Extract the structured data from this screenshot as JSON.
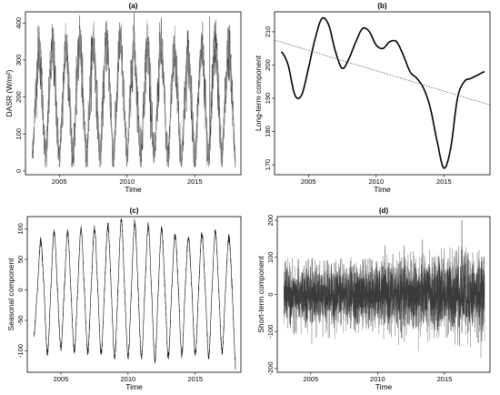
{
  "chart_data": [
    {
      "type": "line",
      "title": "(a)",
      "xlabel": "Time",
      "ylabel": "DASR (W/m²)",
      "xlim": [
        2002.5,
        2018.4
      ],
      "ylim": [
        -10,
        430
      ],
      "xticks": [
        2005,
        2010,
        2015
      ],
      "yticks": [
        0,
        100,
        200,
        300,
        400
      ],
      "line_color": "#3a3a3a",
      "style": "dense daily series",
      "series": [
        {
          "x": [
            2003.0,
            2003.25,
            2003.5,
            2003.75,
            2004.0,
            2004.25,
            2004.5,
            2004.75,
            2005.0,
            2005.25,
            2005.5,
            2005.75,
            2006.0,
            2006.25,
            2006.5,
            2006.75,
            2007.0,
            2007.25,
            2007.5,
            2007.75,
            2008.0,
            2008.25,
            2008.5,
            2008.75,
            2009.0,
            2009.25,
            2009.5,
            2009.75,
            2010.0,
            2010.25,
            2010.5,
            2010.75,
            2011.0,
            2011.25,
            2011.5,
            2011.75,
            2012.0,
            2012.25,
            2012.5,
            2012.75,
            2013.0,
            2013.25,
            2013.5,
            2013.75,
            2014.0,
            2014.25,
            2014.5,
            2014.75,
            2015.0,
            2015.25,
            2015.5,
            2015.75,
            2016.0,
            2016.25,
            2016.5,
            2016.75,
            2017.0,
            2017.25,
            2017.5,
            2017.75,
            2018.0
          ],
          "values": [
            40,
            200,
            330,
            200,
            45,
            205,
            330,
            195,
            40,
            200,
            340,
            200,
            45,
            205,
            350,
            200,
            45,
            200,
            345,
            205,
            45,
            210,
            350,
            200,
            40,
            205,
            350,
            200,
            45,
            200,
            345,
            200,
            40,
            200,
            340,
            200,
            35,
            195,
            335,
            195,
            35,
            190,
            320,
            190,
            30,
            185,
            315,
            190,
            30,
            190,
            330,
            195,
            35,
            200,
            345,
            200,
            35,
            200,
            335,
            195,
            20
          ]
        }
      ],
      "spike": {
        "x": 2016.1,
        "value": 418
      }
    },
    {
      "type": "line",
      "title": "(b)",
      "xlabel": "Time",
      "ylabel": "Long-term component",
      "xlim": [
        2002.5,
        2018.4
      ],
      "ylim": [
        167,
        216
      ],
      "xticks": [
        2005,
        2010,
        2015
      ],
      "yticks": [
        170,
        180,
        190,
        200,
        210
      ],
      "series": [
        {
          "name": "",
          "x": [
            2003.0,
            2003.5,
            2004.0,
            2004.5,
            2005.0,
            2005.5,
            2006.0,
            2006.5,
            2007.0,
            2007.5,
            2008.0,
            2008.5,
            2009.0,
            2009.5,
            2010.0,
            2010.5,
            2011.0,
            2011.5,
            2012.0,
            2012.5,
            2013.0,
            2013.5,
            2014.0,
            2014.5,
            2015.0,
            2015.5,
            2016.0,
            2016.5,
            2017.0,
            2017.5,
            2018.0
          ],
          "values": [
            204,
            200,
            191,
            191,
            199,
            208,
            214,
            212,
            204,
            199,
            202,
            207,
            211,
            210,
            206,
            205,
            207,
            207,
            203,
            198,
            196,
            193,
            187,
            177,
            169,
            175,
            190,
            195,
            196,
            197,
            198
          ]
        },
        {
          "name": "",
          "style": "dotted",
          "x": [
            2002.5,
            2018.4
          ],
          "values": [
            207.5,
            188
          ]
        }
      ]
    },
    {
      "type": "line",
      "title": "(c)",
      "xlabel": "Time",
      "ylabel": "Seasonal component",
      "xlim": [
        2002.5,
        2018.4
      ],
      "ylim": [
        -135,
        120
      ],
      "xticks": [
        2005,
        2010,
        2015
      ],
      "yticks": [
        -100,
        -50,
        0,
        50,
        100
      ],
      "series": [
        {
          "x": [
            2003.0,
            2003.25,
            2003.5,
            2003.75,
            2004.0,
            2004.25,
            2004.5,
            2004.75,
            2005.0,
            2005.25,
            2005.5,
            2005.75,
            2006.0,
            2006.25,
            2006.5,
            2006.75,
            2007.0,
            2007.25,
            2007.5,
            2007.75,
            2008.0,
            2008.25,
            2008.5,
            2008.75,
            2009.0,
            2009.25,
            2009.5,
            2009.75,
            2010.0,
            2010.25,
            2010.5,
            2010.75,
            2011.0,
            2011.25,
            2011.5,
            2011.75,
            2012.0,
            2012.25,
            2012.5,
            2012.75,
            2013.0,
            2013.25,
            2013.5,
            2013.75,
            2014.0,
            2014.25,
            2014.5,
            2014.75,
            2015.0,
            2015.25,
            2015.5,
            2015.75,
            2016.0,
            2016.25,
            2016.5,
            2016.75,
            2017.0,
            2017.25,
            2017.5,
            2017.75,
            2018.0
          ],
          "values": [
            -75,
            0,
            80,
            0,
            -105,
            0,
            95,
            0,
            -95,
            0,
            95,
            0,
            -100,
            0,
            100,
            0,
            -100,
            0,
            100,
            0,
            -105,
            0,
            105,
            0,
            -110,
            0,
            115,
            0,
            -110,
            0,
            110,
            0,
            -110,
            0,
            105,
            0,
            -115,
            0,
            100,
            0,
            -110,
            0,
            90,
            0,
            -105,
            0,
            85,
            0,
            -105,
            0,
            90,
            0,
            -110,
            0,
            95,
            0,
            -100,
            0,
            85,
            0,
            -125
          ]
        }
      ]
    },
    {
      "type": "line",
      "title": "(d)",
      "xlabel": "Time",
      "ylabel": "Short-term component",
      "xlim": [
        2002.5,
        2018.4
      ],
      "ylim": [
        -210,
        210
      ],
      "xticks": [
        2005,
        2010,
        2015
      ],
      "yticks": [
        -200,
        -100,
        0,
        100,
        200
      ],
      "line_color": "#3a3a3a",
      "style": "dense daily noise series",
      "series": [
        {
          "x": [
            2003.0,
            2004.0,
            2005.0,
            2006.0,
            2007.0,
            2008.0,
            2009.0,
            2010.0,
            2011.0,
            2012.0,
            2013.0,
            2014.0,
            2015.0,
            2016.0,
            2017.0,
            2018.0
          ],
          "values": [
            0,
            0,
            0,
            0,
            0,
            0,
            0,
            0,
            0,
            0,
            0,
            0,
            0,
            0,
            0,
            0
          ],
          "envelope_low": [
            -140,
            -150,
            -150,
            -145,
            -140,
            -140,
            -140,
            -150,
            -160,
            -160,
            -170,
            -175,
            -185,
            -190,
            -175,
            -170
          ],
          "envelope_high": [
            100,
            95,
            95,
            90,
            95,
            100,
            95,
            100,
            110,
            120,
            115,
            120,
            125,
            130,
            125,
            120
          ]
        }
      ],
      "spike": {
        "x": 2016.3,
        "value": 200
      }
    }
  ]
}
